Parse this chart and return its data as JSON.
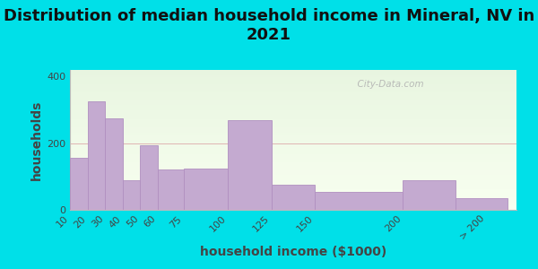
{
  "title": "Distribution of median household income in Mineral, NV in\n2021",
  "xlabel": "household income ($1000)",
  "ylabel": "households",
  "bar_labels": [
    "10",
    "20",
    "30",
    "40",
    "50",
    "60",
    "75",
    "100",
    "125",
    "150",
    "200",
    "> 200"
  ],
  "bar_left_edges": [
    10,
    20,
    30,
    40,
    50,
    60,
    75,
    100,
    125,
    150,
    200,
    230
  ],
  "bar_widths": [
    10,
    10,
    10,
    10,
    10,
    15,
    25,
    25,
    25,
    50,
    30,
    30
  ],
  "bar_values": [
    155,
    325,
    275,
    90,
    195,
    120,
    125,
    270,
    75,
    55,
    90,
    35
  ],
  "bar_color": "#c4aad0",
  "bar_edge_color": "#b090c0",
  "ylim": [
    0,
    420
  ],
  "yticks": [
    0,
    200,
    400
  ],
  "xlim": [
    10,
    265
  ],
  "xtick_positions": [
    10,
    20,
    30,
    40,
    50,
    60,
    75,
    100,
    125,
    150,
    200,
    248
  ],
  "background_outer": "#00e0e8",
  "background_inner_top": "#e8f5e0",
  "background_inner_bottom": "#f8fff0",
  "title_fontsize": 13,
  "axis_label_fontsize": 10,
  "tick_fontsize": 8,
  "watermark_text": "  City-Data.com"
}
